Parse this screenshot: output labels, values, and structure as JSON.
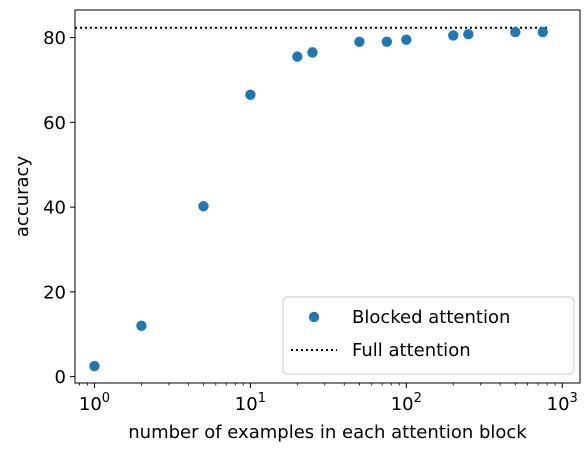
{
  "chart_data": {
    "type": "scatter",
    "xscale": "log",
    "xlabel": "number of examples in each attention block",
    "ylabel": "accuracy",
    "xlim": [
      0.75,
      1300
    ],
    "ylim": [
      -1.5,
      86.5
    ],
    "x_ticks": [
      {
        "value": 1,
        "base": "10",
        "exp": "0"
      },
      {
        "value": 10,
        "base": "10",
        "exp": "1"
      },
      {
        "value": 100,
        "base": "10",
        "exp": "2"
      },
      {
        "value": 1000,
        "base": "10",
        "exp": "3"
      }
    ],
    "y_ticks": [
      0,
      20,
      40,
      60,
      80
    ],
    "grid": false,
    "legend": {
      "position": "lower-right"
    },
    "series": [
      {
        "name": "Blocked attention",
        "kind": "points",
        "color": "#1f77b4",
        "x": [
          1,
          2,
          5,
          10,
          20,
          25,
          50,
          75,
          100,
          200,
          250,
          500,
          750
        ],
        "y": [
          2.5,
          12.0,
          40.2,
          66.5,
          75.5,
          76.5,
          79.0,
          79.0,
          79.5,
          80.5,
          80.8,
          81.3,
          81.3
        ]
      },
      {
        "name": "Full attention",
        "kind": "hline",
        "color": "#000000",
        "y": 82.3
      }
    ]
  }
}
